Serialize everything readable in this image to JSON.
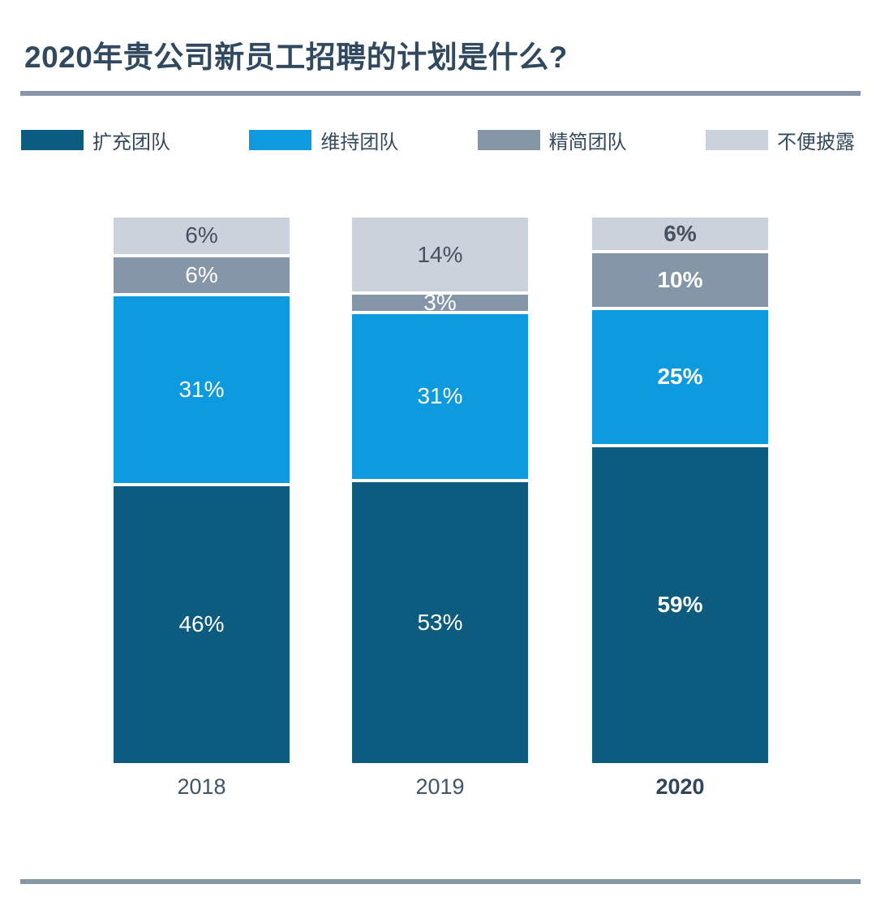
{
  "header": {
    "title": "2020年贵公司新员工招聘的计划是什么?"
  },
  "legend": [
    {
      "label": "扩充团队",
      "color": "#0d5c80"
    },
    {
      "label": "维持团队",
      "color": "#0d9ade"
    },
    {
      "label": "精简团队",
      "color": "#8496a8"
    },
    {
      "label": "不便披露",
      "color": "#ccd2dc"
    }
  ],
  "chart_data": {
    "type": "bar",
    "stacked": true,
    "orientation": "vertical",
    "grid": false,
    "legend_position": "top",
    "categories": [
      "2018",
      "2019",
      "2020"
    ],
    "emphasized_category": "2020",
    "value_suffix": "%",
    "stack_order_top_to_bottom": [
      "不便披露",
      "精简团队",
      "维持团队",
      "扩充团队"
    ],
    "series": [
      {
        "name": "扩充团队",
        "color": "#0d5c80",
        "label_color": "#ffffff",
        "values": [
          46,
          53,
          59
        ],
        "labels": [
          "46%",
          "53%",
          "59%"
        ]
      },
      {
        "name": "维持团队",
        "color": "#0d9ade",
        "label_color": "#ffffff",
        "values": [
          31,
          31,
          25
        ],
        "labels": [
          "31%",
          "31%",
          "25%"
        ]
      },
      {
        "name": "精简团队",
        "color": "#8496a8",
        "label_color": "#ffffff",
        "values": [
          6,
          3,
          10
        ],
        "labels": [
          "6%",
          "3%",
          "10%"
        ]
      },
      {
        "name": "不便披露",
        "color": "#ccd2dc",
        "label_color": "#47515b",
        "values": [
          6,
          14,
          6
        ],
        "labels": [
          "6%",
          "14%",
          "6%"
        ]
      }
    ]
  },
  "dividers": {
    "color": "#8496a8"
  }
}
